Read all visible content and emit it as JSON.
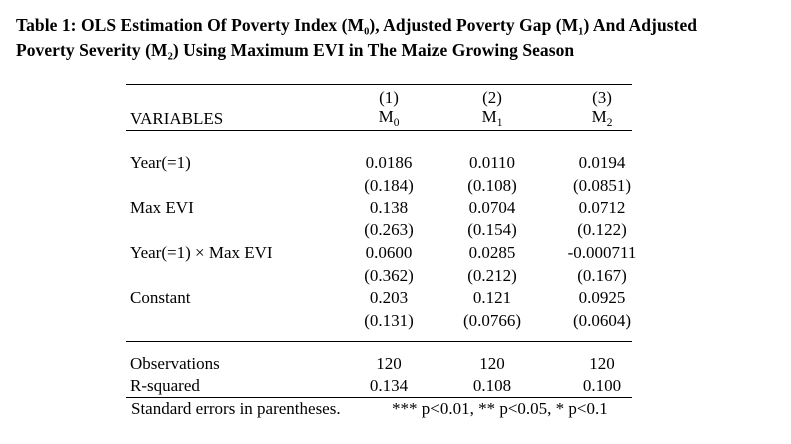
{
  "caption": {
    "line1": "Table 1: OLS Estimation Of Poverty Index (M₀), Adjusted Poverty Gap (M₁) And Adjusted",
    "line2": "Poverty Severity (M₂) Using Maximum EVI in The Maize Growing Season"
  },
  "header": {
    "variables_label": "VARIABLES",
    "columns": [
      {
        "number": "(1)",
        "base": "M",
        "sub": "0"
      },
      {
        "number": "(2)",
        "base": "M",
        "sub": "1"
      },
      {
        "number": "(3)",
        "base": "M",
        "sub": "2"
      }
    ]
  },
  "rows": [
    {
      "label": "Year(=1)",
      "coef": [
        "0.0186",
        "0.0110",
        "0.0194"
      ],
      "se": [
        "(0.184)",
        "(0.108)",
        "(0.0851)"
      ]
    },
    {
      "label": "Max EVI",
      "coef": [
        "0.138",
        "0.0704",
        "0.0712"
      ],
      "se": [
        "(0.263)",
        "(0.154)",
        "(0.122)"
      ]
    },
    {
      "label": "Year(=1) × Max EVI",
      "coef": [
        "0.0600",
        "0.0285",
        "-0.000711"
      ],
      "se": [
        "(0.362)",
        "(0.212)",
        "(0.167)"
      ]
    },
    {
      "label": "Constant",
      "coef": [
        "0.203",
        "0.121",
        "0.0925"
      ],
      "se": [
        "(0.131)",
        "(0.0766)",
        "(0.0604)"
      ]
    }
  ],
  "stats": [
    {
      "label": "Observations",
      "values": [
        "120",
        "120",
        "120"
      ]
    },
    {
      "label": "R-squared",
      "values": [
        "0.134",
        "0.108",
        "0.100"
      ]
    }
  ],
  "notes": {
    "standard_errors": "Standard errors in parentheses.",
    "significance": "*** p<0.01, ** p<0.05, * p<0.1"
  }
}
